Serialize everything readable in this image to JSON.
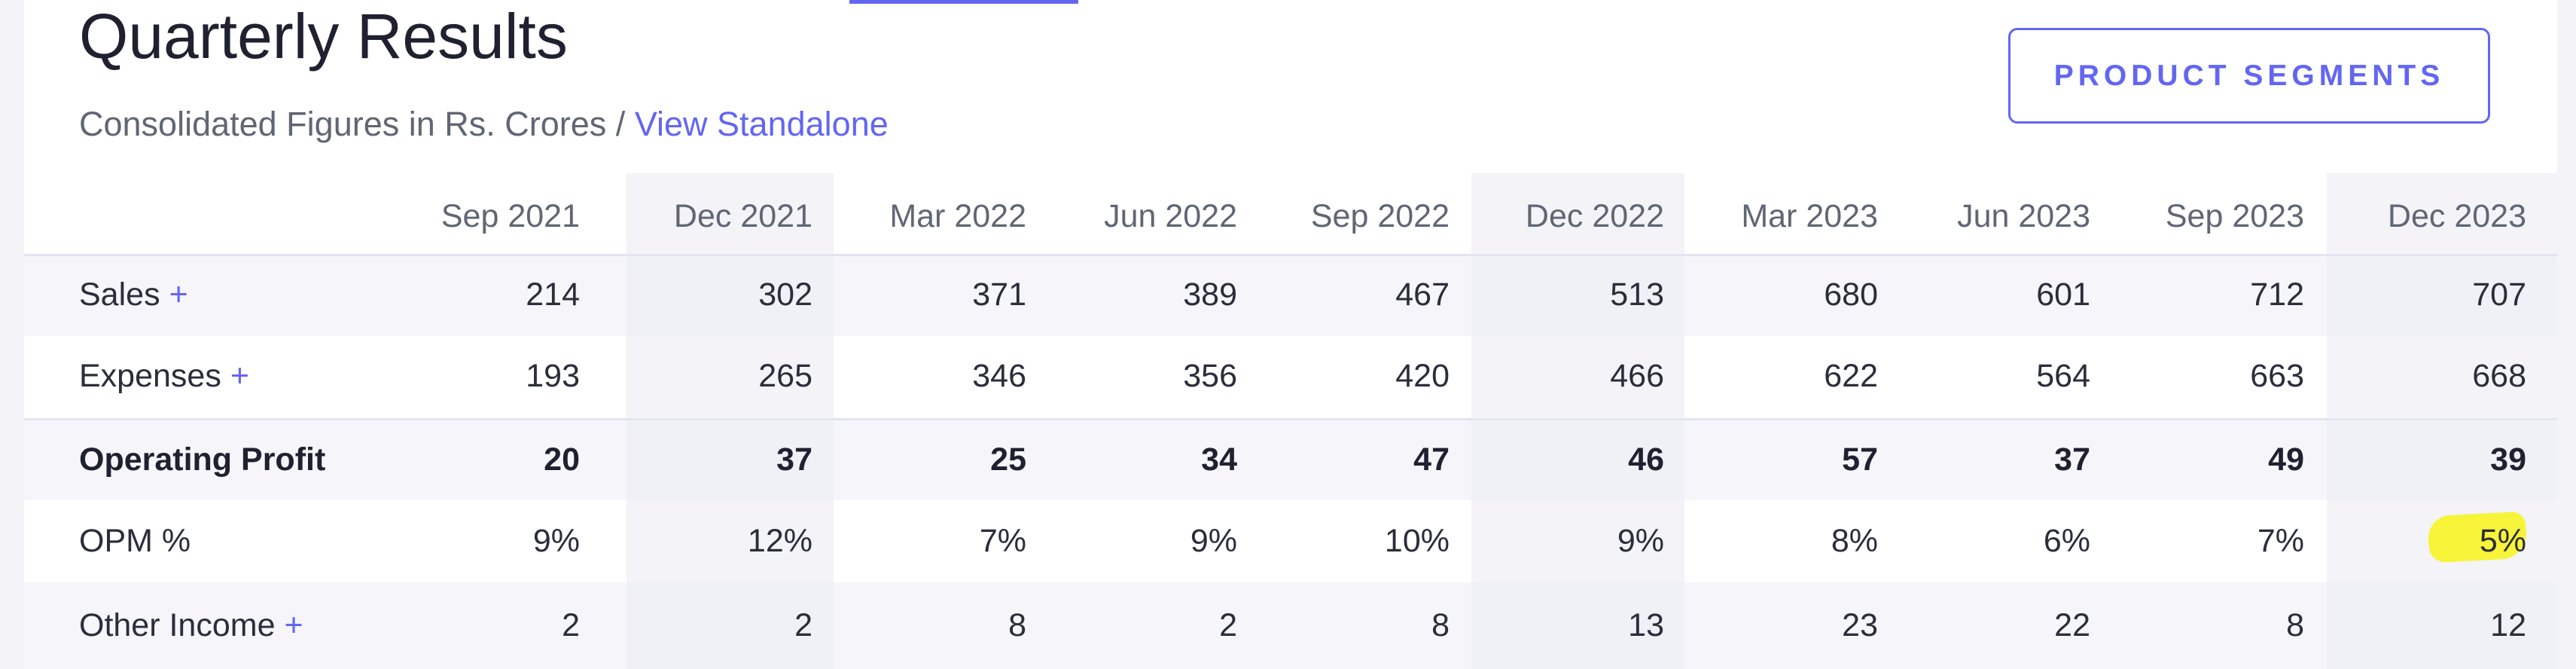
{
  "header": {
    "title": "Quarterly Results",
    "subtitle_prefix": "Consolidated Figures in Rs. Crores / ",
    "subtitle_link": "View Standalone",
    "segments_button": "PRODUCT SEGMENTS"
  },
  "table": {
    "columns": [
      "Sep 2021",
      "Dec 2021",
      "Mar 2022",
      "Jun 2022",
      "Sep 2022",
      "Dec 2022",
      "Mar 2023",
      "Jun 2023",
      "Sep 2023",
      "Dec 2023"
    ],
    "expand_symbol": "+",
    "rows": [
      {
        "label": "Sales",
        "expandable": true,
        "bold": false,
        "values": [
          "214",
          "302",
          "371",
          "389",
          "467",
          "513",
          "680",
          "601",
          "712",
          "707"
        ]
      },
      {
        "label": "Expenses",
        "expandable": true,
        "bold": false,
        "values": [
          "193",
          "265",
          "346",
          "356",
          "420",
          "466",
          "622",
          "564",
          "663",
          "668"
        ]
      },
      {
        "label": "Operating Profit",
        "expandable": false,
        "bold": true,
        "values": [
          "20",
          "37",
          "25",
          "34",
          "47",
          "46",
          "57",
          "37",
          "49",
          "39"
        ]
      },
      {
        "label": "OPM %",
        "expandable": false,
        "bold": false,
        "values": [
          "9%",
          "12%",
          "7%",
          "9%",
          "10%",
          "9%",
          "8%",
          "6%",
          "7%",
          "5%"
        ]
      },
      {
        "label": "Other Income",
        "expandable": true,
        "bold": false,
        "values": [
          "2",
          "2",
          "8",
          "2",
          "8",
          "13",
          "23",
          "22",
          "8",
          "12"
        ]
      }
    ]
  },
  "highlight": {
    "color": "#f7f43a",
    "row": 3,
    "column": 9
  },
  "colors": {
    "accent": "#6366f1",
    "text": "#2b2d3a",
    "muted": "#606673"
  }
}
